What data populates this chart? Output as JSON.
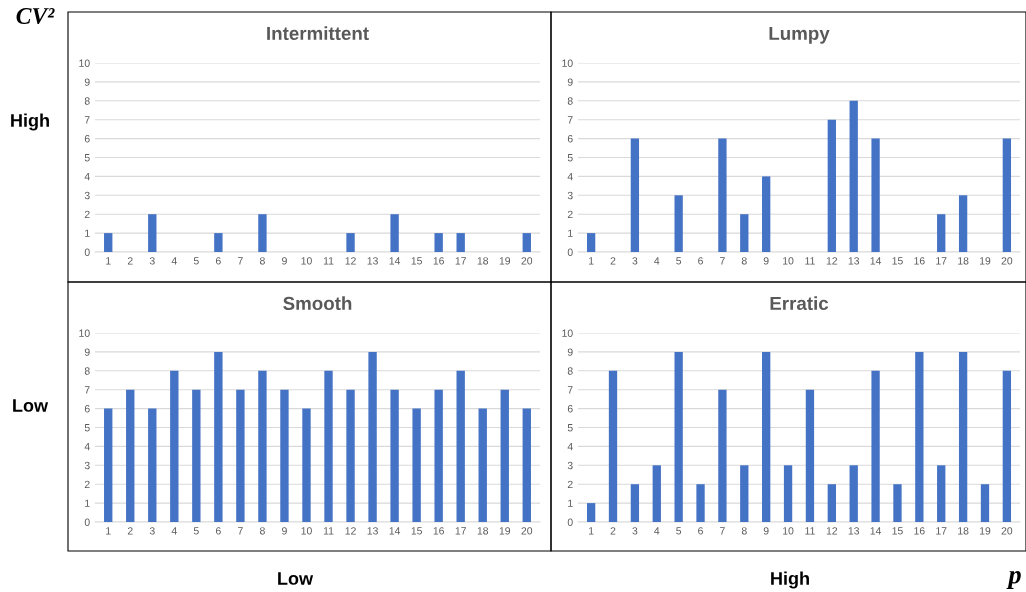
{
  "chart_data": [
    {
      "type": "bar",
      "title": "Intermittent",
      "categories": [
        "1",
        "2",
        "3",
        "4",
        "5",
        "6",
        "7",
        "8",
        "9",
        "10",
        "11",
        "12",
        "13",
        "14",
        "15",
        "16",
        "17",
        "18",
        "19",
        "20"
      ],
      "values": [
        1,
        0,
        2,
        0,
        0,
        1,
        0,
        2,
        0,
        0,
        0,
        1,
        0,
        2,
        0,
        1,
        1,
        0,
        0,
        1
      ],
      "color": "#4472c4",
      "ylim": [
        0,
        10
      ],
      "yticks": [
        0,
        1,
        2,
        3,
        4,
        5,
        6,
        7,
        8,
        9,
        10
      ],
      "grid": "y"
    },
    {
      "type": "bar",
      "title": "Lumpy",
      "categories": [
        "1",
        "2",
        "3",
        "4",
        "5",
        "6",
        "7",
        "8",
        "9",
        "10",
        "11",
        "12",
        "13",
        "14",
        "15",
        "16",
        "17",
        "18",
        "19",
        "20"
      ],
      "values": [
        1,
        0,
        6,
        0,
        3,
        0,
        6,
        2,
        4,
        0,
        0,
        7,
        8,
        6,
        0,
        0,
        2,
        3,
        0,
        6
      ],
      "color": "#4472c4",
      "ylim": [
        0,
        10
      ],
      "yticks": [
        0,
        1,
        2,
        3,
        4,
        5,
        6,
        7,
        8,
        9,
        10
      ],
      "grid": "y"
    },
    {
      "type": "bar",
      "title": "Smooth",
      "categories": [
        "1",
        "2",
        "3",
        "4",
        "5",
        "6",
        "7",
        "8",
        "9",
        "10",
        "11",
        "12",
        "13",
        "14",
        "15",
        "16",
        "17",
        "18",
        "19",
        "20"
      ],
      "values": [
        6,
        7,
        6,
        8,
        7,
        9,
        7,
        8,
        7,
        6,
        8,
        7,
        9,
        7,
        6,
        7,
        8,
        6,
        7,
        6
      ],
      "color": "#4472c4",
      "ylim": [
        0,
        10
      ],
      "yticks": [
        0,
        1,
        2,
        3,
        4,
        5,
        6,
        7,
        8,
        9,
        10
      ],
      "grid": "y"
    },
    {
      "type": "bar",
      "title": "Erratic",
      "categories": [
        "1",
        "2",
        "3",
        "4",
        "5",
        "6",
        "7",
        "8",
        "9",
        "10",
        "11",
        "12",
        "13",
        "14",
        "15",
        "16",
        "17",
        "18",
        "19",
        "20"
      ],
      "values": [
        1,
        8,
        2,
        3,
        9,
        2,
        7,
        3,
        9,
        3,
        7,
        2,
        3,
        8,
        2,
        9,
        3,
        9,
        2,
        8
      ],
      "color": "#4472c4",
      "ylim": [
        0,
        10
      ],
      "yticks": [
        0,
        1,
        2,
        3,
        4,
        5,
        6,
        7,
        8,
        9,
        10
      ],
      "grid": "y"
    },
    {
      "type": "other",
      "annotations": [
        "CV²",
        "High",
        "Low",
        "Low",
        "High",
        "p"
      ]
    }
  ]
}
